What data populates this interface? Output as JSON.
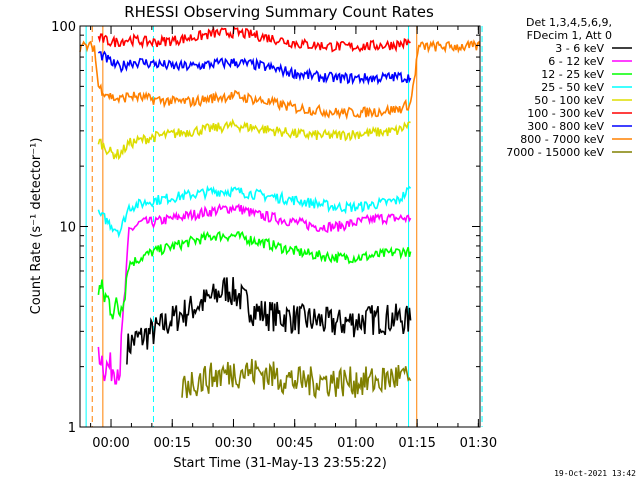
{
  "chart_data": {
    "type": "line",
    "title": "RHESSI Observing Summary Count Rates",
    "xlabel": "Start Time (31-May-13 23:55:22)",
    "ylabel": "Count Rate (s⁻¹ detector⁻¹)",
    "yscale": "log",
    "ylim": [
      1,
      100
    ],
    "xlim_minutes": [
      -3,
      95
    ],
    "x_tick_labels": [
      "00:00",
      "00:15",
      "00:30",
      "00:45",
      "01:00",
      "01:15",
      "01:30"
    ],
    "x_tick_minutes": [
      4.6,
      19.6,
      34.6,
      49.6,
      64.6,
      79.6,
      94.6
    ],
    "y_tick_labels": [
      "1",
      "10",
      "100"
    ],
    "y_tick_values": [
      1,
      10,
      100
    ],
    "legend_header": [
      "Det 1,3,4,5,6,9,",
      "FDecim 1, Att 0"
    ],
    "legend_position": "right",
    "footer_date": "19-Oct-2021 13:42",
    "orbit_lines_minutes": {
      "orange_solid": [
        2.6,
        79.5
      ],
      "orange_dashed": [
        0.0,
        95.0
      ],
      "cyan_solid": [
        -1.5,
        77.5
      ],
      "cyan_dashed": [
        15.0,
        95.5
      ]
    },
    "series": [
      {
        "name": "3 - 6 keV",
        "color": "#000000",
        "x": [
          8.5,
          10,
          12,
          15,
          20,
          25,
          30,
          33,
          36,
          40,
          45,
          50,
          55,
          60,
          65,
          70,
          75,
          78
        ],
        "y": [
          2.5,
          2.7,
          2.8,
          3.0,
          3.5,
          4.0,
          4.5,
          5.0,
          4.5,
          3.8,
          3.6,
          3.5,
          3.4,
          3.3,
          3.4,
          3.5,
          3.5,
          3.4
        ]
      },
      {
        "name": "6 - 12 keV",
        "color": "#ff00ff",
        "x": [
          1.5,
          3,
          5,
          6.8,
          9,
          12,
          15,
          20,
          25,
          30,
          35,
          40,
          45,
          50,
          55,
          60,
          65,
          70,
          75,
          78
        ],
        "y": [
          2.5,
          2.0,
          2.0,
          2.0,
          9.5,
          10.5,
          10.5,
          11.0,
          11.5,
          12.0,
          12.5,
          11.5,
          11.0,
          10.5,
          10.0,
          10.0,
          10.5,
          11.0,
          11.0,
          11.0
        ]
      },
      {
        "name": "12 - 25 keV",
        "color": "#00ff00",
        "x": [
          1.5,
          3,
          5,
          6.8,
          9,
          12,
          15,
          20,
          25,
          30,
          35,
          40,
          45,
          50,
          55,
          60,
          65,
          70,
          75,
          78
        ],
        "y": [
          5.0,
          4.5,
          4.0,
          3.8,
          6.5,
          7.0,
          7.5,
          8.0,
          8.5,
          9.0,
          9.0,
          8.5,
          8.0,
          7.5,
          7.2,
          7.0,
          7.0,
          7.2,
          7.5,
          7.5
        ]
      },
      {
        "name": "25 - 50 keV",
        "color": "#00ffff",
        "x": [
          1.5,
          3,
          5,
          6.8,
          9,
          12,
          15,
          20,
          25,
          30,
          35,
          40,
          45,
          50,
          55,
          60,
          65,
          70,
          75,
          78
        ],
        "y": [
          11.5,
          11.0,
          10.0,
          9.5,
          12.5,
          13.0,
          13.5,
          14.0,
          14.5,
          15.0,
          15.0,
          14.5,
          14.0,
          13.5,
          13.0,
          12.5,
          12.5,
          13.0,
          13.5,
          15.5
        ]
      },
      {
        "name": "50 - 100 keV",
        "color": "#dddd00",
        "x": [
          1.5,
          3,
          5,
          6.8,
          9,
          12,
          15,
          20,
          25,
          30,
          35,
          40,
          45,
          50,
          55,
          60,
          65,
          70,
          75,
          78
        ],
        "y": [
          27,
          25,
          23,
          23,
          26,
          27,
          28,
          29,
          30,
          31,
          32,
          31,
          30,
          29,
          28.5,
          28.5,
          29,
          29.5,
          30,
          33
        ]
      },
      {
        "name": "100 - 300 keV",
        "color": "#ff0000",
        "x": [
          1.5,
          3,
          5,
          6.8,
          9,
          12,
          15,
          20,
          25,
          30,
          35,
          40,
          45,
          50,
          55,
          60,
          65,
          70,
          75,
          78
        ],
        "y": [
          88,
          85,
          83,
          84,
          86,
          84,
          83,
          85,
          88,
          92,
          93,
          90,
          86,
          82,
          80,
          79,
          79,
          80,
          81,
          83
        ]
      },
      {
        "name": "300 - 800 keV",
        "color": "#0000ff",
        "x": [
          1.5,
          3,
          5,
          6.8,
          9,
          12,
          15,
          20,
          25,
          30,
          35,
          40,
          45,
          50,
          55,
          60,
          65,
          70,
          75,
          78
        ],
        "y": [
          73,
          70,
          65,
          62,
          66,
          66,
          65,
          63,
          63,
          65,
          66,
          64,
          61,
          58,
          56,
          55,
          55,
          55,
          56,
          55
        ]
      },
      {
        "name": "800 - 7000 keV",
        "color": "#ff8000",
        "x": [
          -3,
          0.5,
          1.5,
          3,
          5,
          6.8,
          9,
          12,
          15,
          20,
          25,
          30,
          35,
          40,
          45,
          50,
          55,
          60,
          65,
          70,
          75,
          78,
          80,
          95
        ],
        "y": [
          79,
          79,
          50,
          47,
          44,
          43,
          45,
          44,
          43,
          42,
          42,
          44,
          45,
          43,
          41,
          39,
          38,
          37,
          37,
          37.5,
          38.5,
          41,
          79,
          79
        ]
      },
      {
        "name": "7000 - 15000 keV",
        "color": "#808000",
        "x": [
          22,
          25,
          30,
          35,
          40,
          45,
          50,
          55,
          60,
          65,
          70,
          75,
          78
        ],
        "y": [
          1.6,
          1.7,
          1.8,
          1.9,
          1.9,
          1.8,
          1.7,
          1.7,
          1.7,
          1.7,
          1.7,
          1.8,
          1.7
        ]
      }
    ]
  }
}
